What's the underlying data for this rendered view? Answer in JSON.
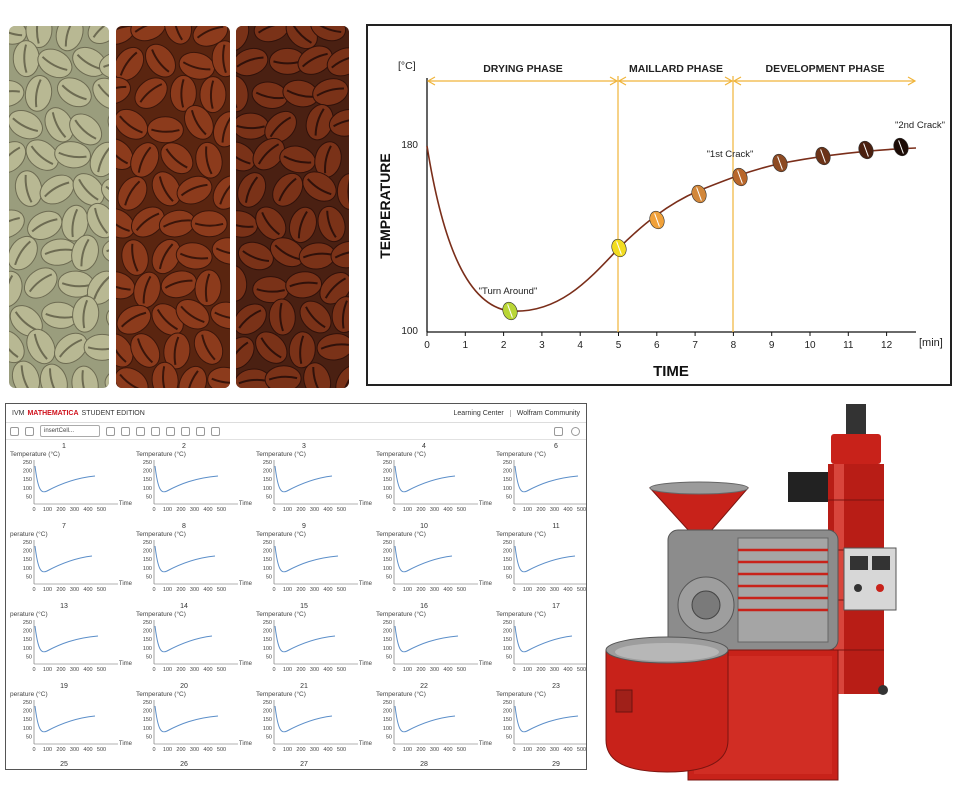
{
  "roast_chart": {
    "y_unit": "[°C]",
    "x_unit": "[min]",
    "y_title": "TEMPERATURE",
    "x_title": "TIME",
    "phases": [
      "DRYING PHASE",
      "MAILLARD PHASE",
      "DEVELOPMENT PHASE"
    ],
    "annotations": [
      "\"Turn Around\"",
      "\"1st Crack\"",
      "\"2nd Crack\""
    ],
    "y_ticks": [
      "180",
      "100"
    ],
    "x_ticks": [
      "0",
      "1",
      "2",
      "3",
      "4",
      "5",
      "6",
      "7",
      "8",
      "9",
      "10",
      "11",
      "12"
    ]
  },
  "mathematica": {
    "title_prefix": "IVM",
    "brand": "MATHEMATICA",
    "edition": "STUDENT EDITION",
    "links": [
      "Learning Center",
      "Wolfram Community"
    ],
    "insert_cell_label": "insertCell...",
    "plot_ylabel": "Temperature (°C)",
    "plot_ylabel_clipped": "perature (°C)",
    "plot_xlabel": "Time",
    "plot_yticks": [
      "250",
      "200",
      "150",
      "100",
      "50"
    ],
    "plot_xticks": [
      "0",
      "100",
      "200",
      "300",
      "400",
      "500"
    ],
    "plot_numbers": [
      "1",
      "2",
      "3",
      "4",
      "6",
      "7",
      "8",
      "9",
      "10",
      "11",
      "13",
      "14",
      "15",
      "16",
      "17",
      "19",
      "20",
      "21",
      "22",
      "23",
      "25",
      "26",
      "27",
      "28",
      "29"
    ]
  },
  "colors": {
    "phase_line": "#f0b43a",
    "curve": "#7a2e1a",
    "mma_brand": "#d0101b",
    "mma_plot_line": "#5b8ec9",
    "roaster_red": "#c8221a"
  }
}
